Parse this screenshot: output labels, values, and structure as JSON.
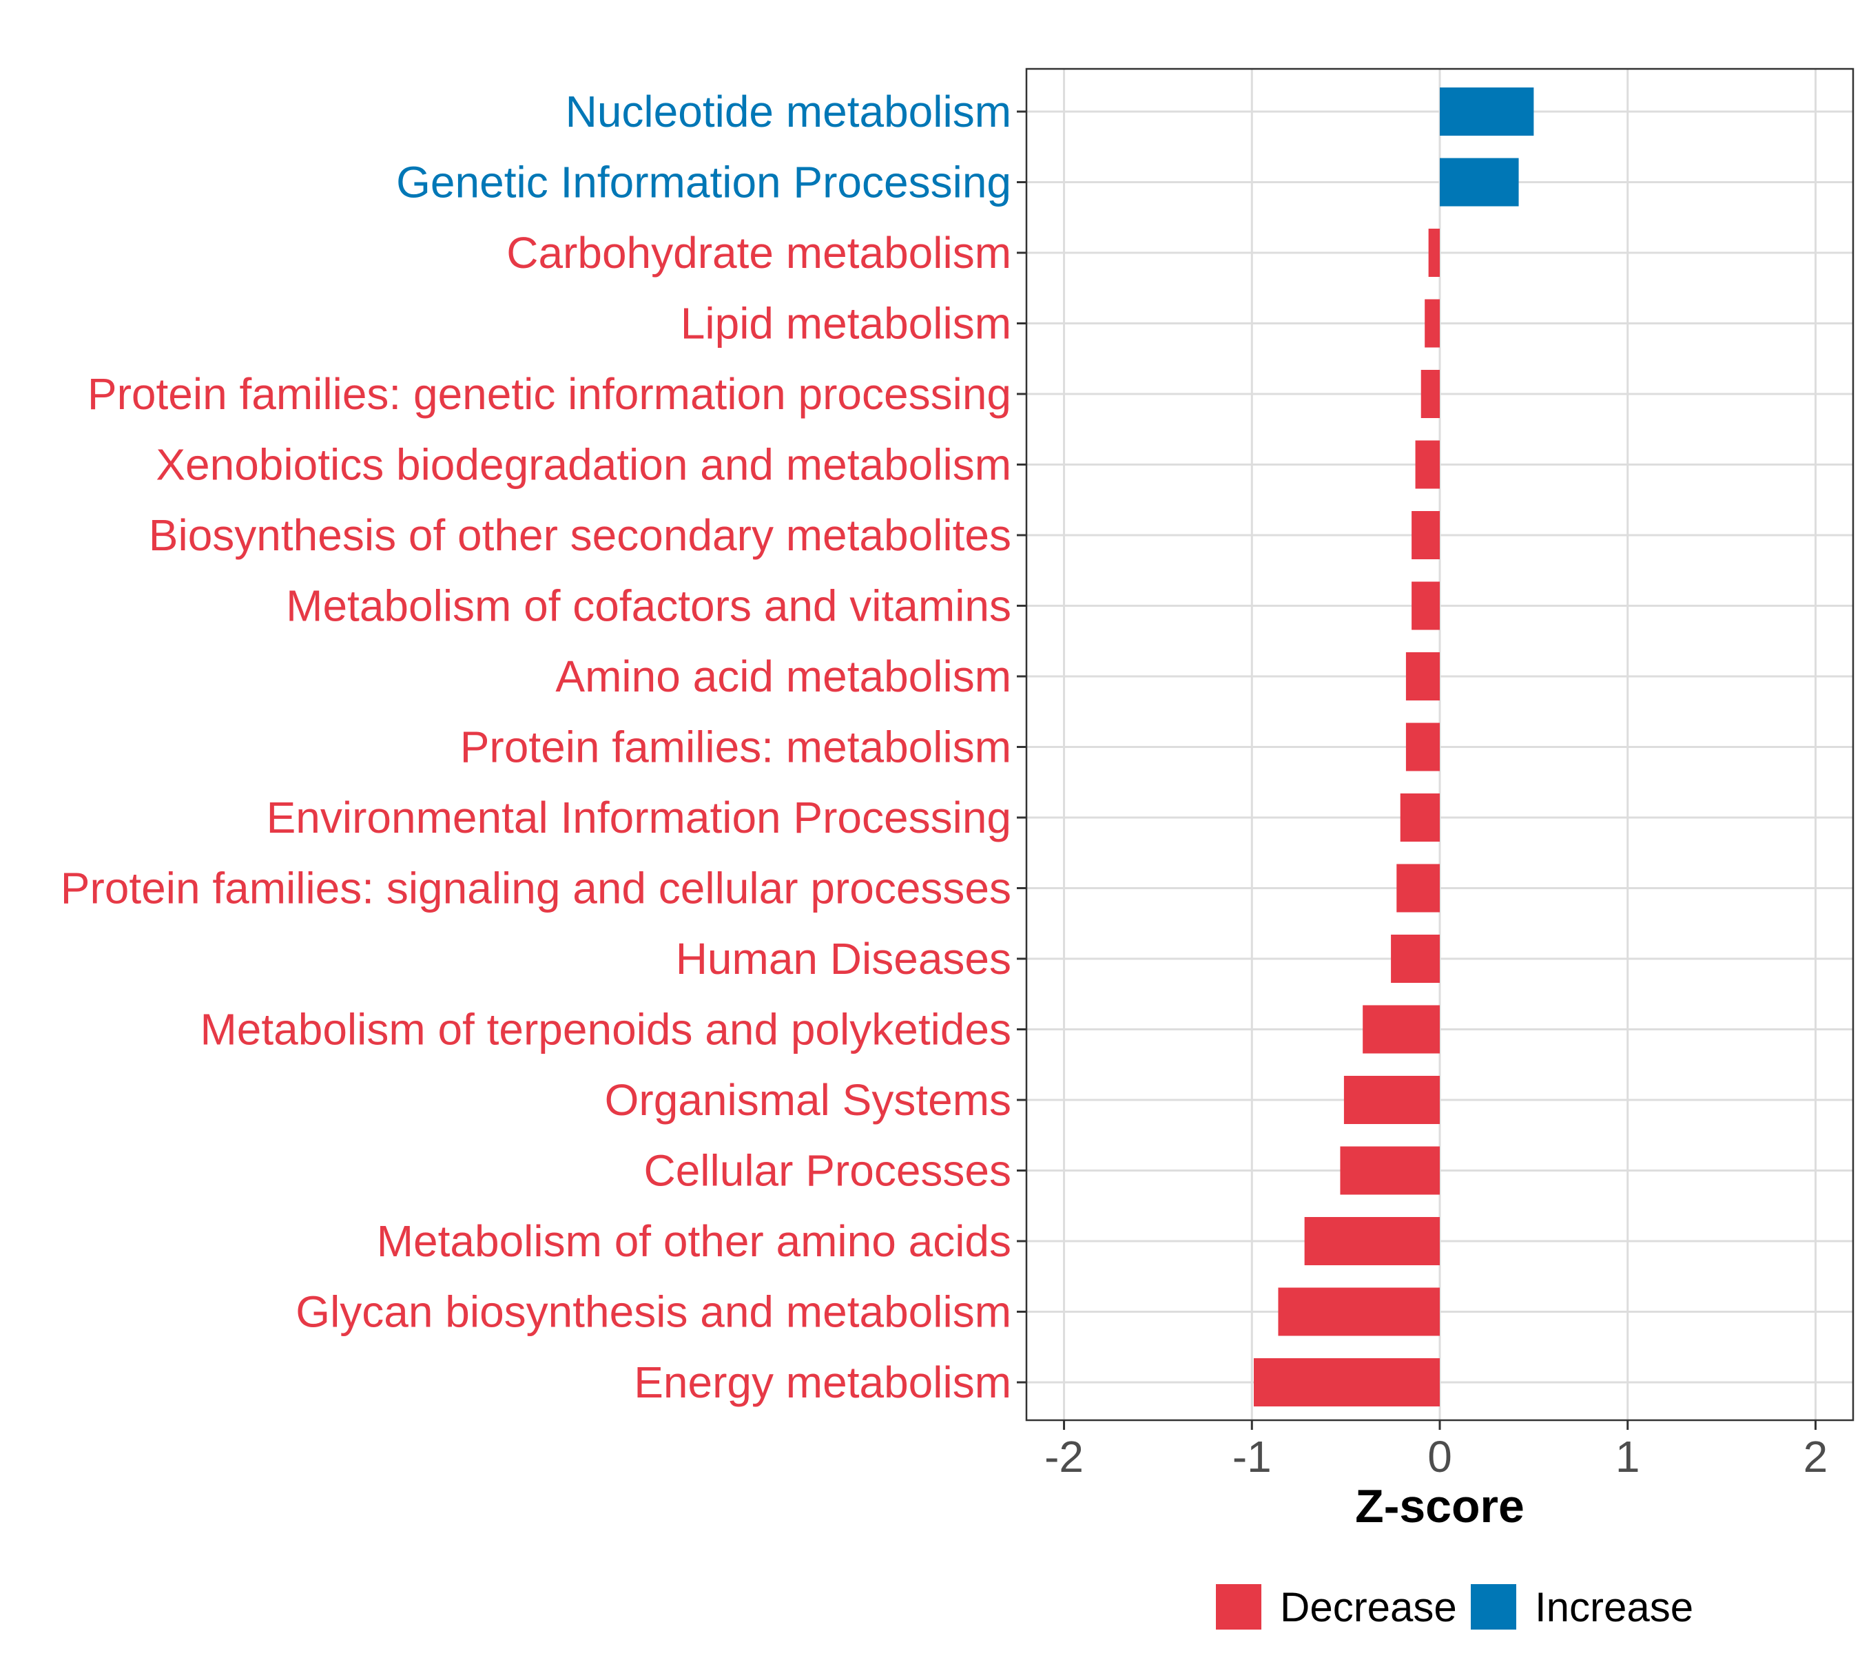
{
  "chart_data": {
    "type": "bar",
    "orientation": "horizontal",
    "xlabel": "Z-score",
    "ylabel": "",
    "xlim": [
      -2.2,
      2.2
    ],
    "xticks": [
      "-2",
      "-1",
      "0",
      "1",
      "2"
    ],
    "grid": true,
    "categories": [
      "Nucleotide metabolism",
      "Genetic Information Processing",
      "Carbohydrate metabolism",
      "Lipid metabolism",
      "Protein families: genetic information processing",
      "Xenobiotics biodegradation and metabolism",
      "Biosynthesis of other secondary metabolites",
      "Metabolism of cofactors and vitamins",
      "Amino acid metabolism",
      "Protein families: metabolism",
      "Environmental Information Processing",
      "Protein families: signaling and cellular processes",
      "Human Diseases",
      "Metabolism of terpenoids and polyketides",
      "Organismal Systems",
      "Cellular Processes",
      "Metabolism of other amino acids",
      "Glycan biosynthesis and metabolism",
      "Energy metabolism"
    ],
    "values": [
      0.5,
      0.42,
      -0.06,
      -0.08,
      -0.1,
      -0.13,
      -0.15,
      -0.15,
      -0.18,
      -0.18,
      -0.21,
      -0.23,
      -0.26,
      -0.41,
      -0.51,
      -0.53,
      -0.72,
      -0.86,
      -0.99
    ],
    "groups": [
      "Increase",
      "Increase",
      "Decrease",
      "Decrease",
      "Decrease",
      "Decrease",
      "Decrease",
      "Decrease",
      "Decrease",
      "Decrease",
      "Decrease",
      "Decrease",
      "Decrease",
      "Decrease",
      "Decrease",
      "Decrease",
      "Decrease",
      "Decrease",
      "Decrease"
    ],
    "legend": [
      {
        "name": "Decrease",
        "color": "#e63946"
      },
      {
        "name": "Increase",
        "color": "#0077b6"
      }
    ],
    "legend_position": "bottom"
  }
}
